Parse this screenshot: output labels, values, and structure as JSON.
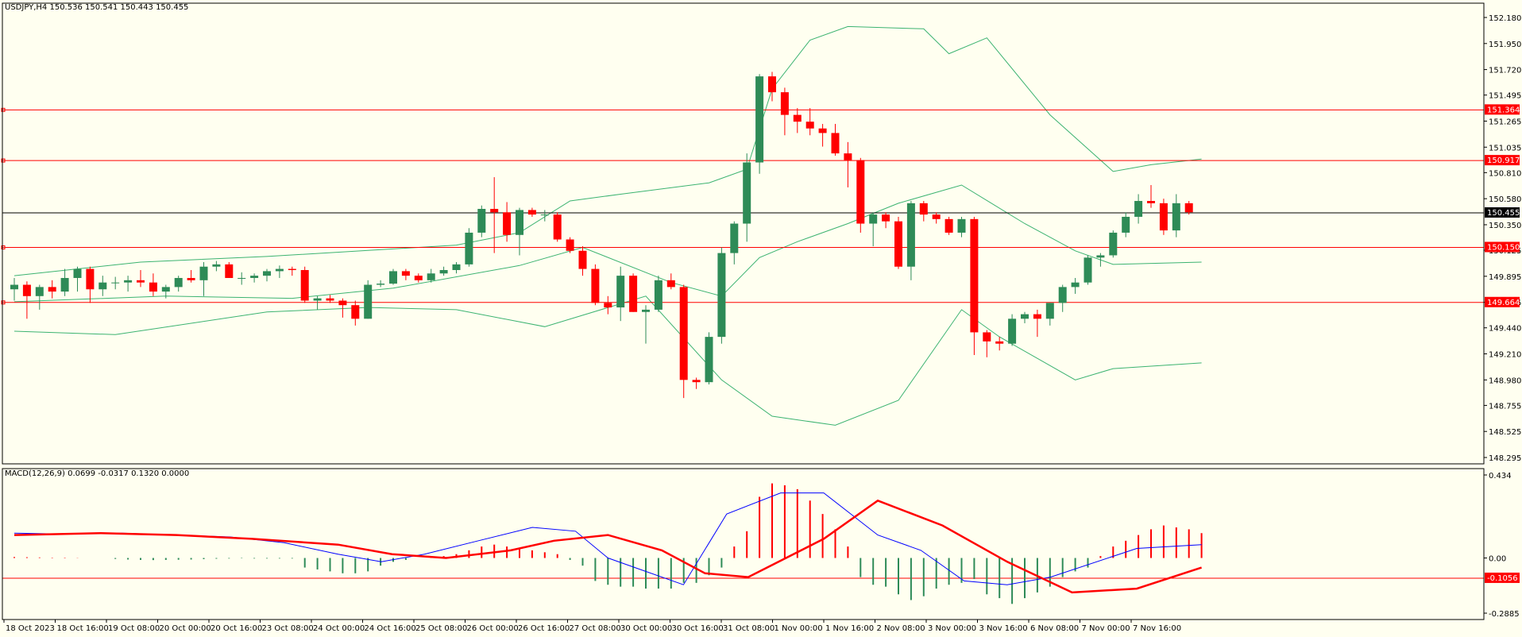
{
  "symbol_info": "USDJPY,H4  150.536 150.541 150.443 150.455",
  "macd_info": "MACD(12,26,9) 0.0699 -0.0317 0.1320 0.0000",
  "colors": {
    "background": "#fffff0",
    "bull": "#2e8b57",
    "bear": "#ff0000",
    "bands": "#3cb371",
    "macd_line": "#0000ff",
    "signal_line": "#ff0000",
    "price_line": "#000000",
    "level_line": "#ff0000"
  },
  "chart_data": [
    {
      "type": "candlestick",
      "title": "USDJPY,H4",
      "ylim": [
        148.295,
        152.18
      ],
      "y_ticks": [
        "152.180",
        "151.950",
        "151.720",
        "151.495",
        "151.265",
        "151.035",
        "150.810",
        "150.580",
        "150.350",
        "150.125",
        "149.895",
        "149.665",
        "149.440",
        "149.210",
        "148.980",
        "148.755",
        "148.525",
        "148.295"
      ],
      "current_price": "150.455",
      "levels": [
        {
          "value": 151.364,
          "label": "151.364"
        },
        {
          "value": 150.917,
          "label": "150.917"
        },
        {
          "value": 150.15,
          "label": "150.150"
        },
        {
          "value": 149.664,
          "label": "149.664"
        }
      ],
      "x_tick_labels": [
        "18 Oct 2023",
        "18 Oct 16:00",
        "19 Oct 08:00",
        "20 Oct 00:00",
        "20 Oct 16:00",
        "23 Oct 08:00",
        "24 Oct 00:00",
        "24 Oct 16:00",
        "25 Oct 08:00",
        "26 Oct 00:00",
        "26 Oct 16:00",
        "27 Oct 08:00",
        "30 Oct 00:00",
        "30 Oct 16:00",
        "31 Oct 08:00",
        "1 Nov 00:00",
        "1 Nov 16:00",
        "2 Nov 08:00",
        "3 Nov 00:00",
        "3 Nov 16:00",
        "6 Nov 08:00",
        "7 Nov 00:00",
        "7 Nov 16:00"
      ],
      "candles": [
        {
          "o": 149.78,
          "h": 149.88,
          "l": 149.68,
          "c": 149.82
        },
        {
          "o": 149.82,
          "h": 149.85,
          "l": 149.52,
          "c": 149.72
        },
        {
          "o": 149.72,
          "h": 149.82,
          "l": 149.6,
          "c": 149.8
        },
        {
          "o": 149.8,
          "h": 149.86,
          "l": 149.7,
          "c": 149.76
        },
        {
          "o": 149.76,
          "h": 149.96,
          "l": 149.72,
          "c": 149.88
        },
        {
          "o": 149.88,
          "h": 149.98,
          "l": 149.76,
          "c": 149.96
        },
        {
          "o": 149.96,
          "h": 149.98,
          "l": 149.66,
          "c": 149.78
        },
        {
          "o": 149.78,
          "h": 149.9,
          "l": 149.72,
          "c": 149.84
        },
        {
          "o": 149.84,
          "h": 149.89,
          "l": 149.78,
          "c": 149.84
        },
        {
          "o": 149.84,
          "h": 149.9,
          "l": 149.76,
          "c": 149.86
        },
        {
          "o": 149.86,
          "h": 149.95,
          "l": 149.8,
          "c": 149.84
        },
        {
          "o": 149.84,
          "h": 149.92,
          "l": 149.72,
          "c": 149.76
        },
        {
          "o": 149.76,
          "h": 149.82,
          "l": 149.7,
          "c": 149.8
        },
        {
          "o": 149.8,
          "h": 149.9,
          "l": 149.76,
          "c": 149.88
        },
        {
          "o": 149.88,
          "h": 149.95,
          "l": 149.84,
          "c": 149.86
        },
        {
          "o": 149.86,
          "h": 150.02,
          "l": 149.72,
          "c": 149.98
        },
        {
          "o": 149.98,
          "h": 150.03,
          "l": 149.94,
          "c": 150.0
        },
        {
          "o": 150.0,
          "h": 150.02,
          "l": 149.88,
          "c": 149.88
        },
        {
          "o": 149.88,
          "h": 149.93,
          "l": 149.82,
          "c": 149.88
        },
        {
          "o": 149.88,
          "h": 149.92,
          "l": 149.84,
          "c": 149.9
        },
        {
          "o": 149.9,
          "h": 149.96,
          "l": 149.85,
          "c": 149.94
        },
        {
          "o": 149.94,
          "h": 149.99,
          "l": 149.88,
          "c": 149.96
        },
        {
          "o": 149.96,
          "h": 149.98,
          "l": 149.9,
          "c": 149.95
        },
        {
          "o": 149.95,
          "h": 149.98,
          "l": 149.66,
          "c": 149.68
        },
        {
          "o": 149.68,
          "h": 149.72,
          "l": 149.6,
          "c": 149.7
        },
        {
          "o": 149.7,
          "h": 149.73,
          "l": 149.66,
          "c": 149.68
        },
        {
          "o": 149.68,
          "h": 149.7,
          "l": 149.53,
          "c": 149.64
        },
        {
          "o": 149.64,
          "h": 149.68,
          "l": 149.46,
          "c": 149.52
        },
        {
          "o": 149.52,
          "h": 149.86,
          "l": 149.52,
          "c": 149.82
        },
        {
          "o": 149.82,
          "h": 149.86,
          "l": 149.8,
          "c": 149.83
        },
        {
          "o": 149.83,
          "h": 149.96,
          "l": 149.82,
          "c": 149.94
        },
        {
          "o": 149.94,
          "h": 149.96,
          "l": 149.86,
          "c": 149.9
        },
        {
          "o": 149.9,
          "h": 149.92,
          "l": 149.84,
          "c": 149.86
        },
        {
          "o": 149.86,
          "h": 149.96,
          "l": 149.84,
          "c": 149.92
        },
        {
          "o": 149.92,
          "h": 149.98,
          "l": 149.9,
          "c": 149.95
        },
        {
          "o": 149.95,
          "h": 150.02,
          "l": 149.92,
          "c": 150.0
        },
        {
          "o": 150.0,
          "h": 150.32,
          "l": 149.98,
          "c": 150.28
        },
        {
          "o": 150.28,
          "h": 150.52,
          "l": 150.24,
          "c": 150.49
        },
        {
          "o": 150.49,
          "h": 150.77,
          "l": 150.1,
          "c": 150.46
        },
        {
          "o": 150.46,
          "h": 150.55,
          "l": 150.2,
          "c": 150.26
        },
        {
          "o": 150.26,
          "h": 150.5,
          "l": 150.08,
          "c": 150.48
        },
        {
          "o": 150.48,
          "h": 150.5,
          "l": 150.42,
          "c": 150.44
        },
        {
          "o": 150.44,
          "h": 150.48,
          "l": 150.38,
          "c": 150.44
        },
        {
          "o": 150.44,
          "h": 150.46,
          "l": 150.2,
          "c": 150.22
        },
        {
          "o": 150.22,
          "h": 150.24,
          "l": 150.1,
          "c": 150.12
        },
        {
          "o": 150.12,
          "h": 150.16,
          "l": 149.9,
          "c": 149.96
        },
        {
          "o": 149.96,
          "h": 150.0,
          "l": 149.64,
          "c": 149.66
        },
        {
          "o": 149.66,
          "h": 149.72,
          "l": 149.56,
          "c": 149.62
        },
        {
          "o": 149.62,
          "h": 149.98,
          "l": 149.5,
          "c": 149.9
        },
        {
          "o": 149.9,
          "h": 149.92,
          "l": 149.58,
          "c": 149.58
        },
        {
          "o": 149.58,
          "h": 149.64,
          "l": 149.3,
          "c": 149.6
        },
        {
          "o": 149.6,
          "h": 149.9,
          "l": 149.58,
          "c": 149.86
        },
        {
          "o": 149.86,
          "h": 149.92,
          "l": 149.78,
          "c": 149.8
        },
        {
          "o": 149.8,
          "h": 149.82,
          "l": 148.82,
          "c": 148.98
        },
        {
          "o": 148.98,
          "h": 149.0,
          "l": 148.9,
          "c": 148.96
        },
        {
          "o": 148.96,
          "h": 149.4,
          "l": 148.94,
          "c": 149.36
        },
        {
          "o": 149.36,
          "h": 150.15,
          "l": 149.3,
          "c": 150.1
        },
        {
          "o": 150.1,
          "h": 150.38,
          "l": 150.0,
          "c": 150.36
        },
        {
          "o": 150.36,
          "h": 150.98,
          "l": 150.2,
          "c": 150.9
        },
        {
          "o": 150.9,
          "h": 151.68,
          "l": 150.8,
          "c": 151.66
        },
        {
          "o": 151.66,
          "h": 151.7,
          "l": 151.44,
          "c": 151.52
        },
        {
          "o": 151.52,
          "h": 151.56,
          "l": 151.14,
          "c": 151.32
        },
        {
          "o": 151.32,
          "h": 151.38,
          "l": 151.16,
          "c": 151.26
        },
        {
          "o": 151.26,
          "h": 151.38,
          "l": 151.14,
          "c": 151.2
        },
        {
          "o": 151.2,
          "h": 151.24,
          "l": 151.04,
          "c": 151.16
        },
        {
          "o": 151.16,
          "h": 151.24,
          "l": 150.96,
          "c": 150.98
        },
        {
          "o": 150.98,
          "h": 151.08,
          "l": 150.68,
          "c": 150.92
        },
        {
          "o": 150.92,
          "h": 150.94,
          "l": 150.28,
          "c": 150.36
        },
        {
          "o": 150.36,
          "h": 150.46,
          "l": 150.16,
          "c": 150.44
        },
        {
          "o": 150.44,
          "h": 150.46,
          "l": 150.32,
          "c": 150.38
        },
        {
          "o": 150.38,
          "h": 150.42,
          "l": 149.96,
          "c": 149.98
        },
        {
          "o": 149.98,
          "h": 150.56,
          "l": 149.86,
          "c": 150.54
        },
        {
          "o": 150.54,
          "h": 150.56,
          "l": 150.38,
          "c": 150.44
        },
        {
          "o": 150.44,
          "h": 150.46,
          "l": 150.36,
          "c": 150.4
        },
        {
          "o": 150.4,
          "h": 150.42,
          "l": 150.26,
          "c": 150.28
        },
        {
          "o": 150.28,
          "h": 150.42,
          "l": 150.24,
          "c": 150.4
        },
        {
          "o": 150.4,
          "h": 150.42,
          "l": 149.2,
          "c": 149.4
        },
        {
          "o": 149.4,
          "h": 149.42,
          "l": 149.18,
          "c": 149.32
        },
        {
          "o": 149.32,
          "h": 149.36,
          "l": 149.24,
          "c": 149.3
        },
        {
          "o": 149.3,
          "h": 149.56,
          "l": 149.28,
          "c": 149.52
        },
        {
          "o": 149.52,
          "h": 149.58,
          "l": 149.48,
          "c": 149.56
        },
        {
          "o": 149.56,
          "h": 149.6,
          "l": 149.36,
          "c": 149.52
        },
        {
          "o": 149.52,
          "h": 149.66,
          "l": 149.46,
          "c": 149.66
        },
        {
          "o": 149.66,
          "h": 149.82,
          "l": 149.58,
          "c": 149.8
        },
        {
          "o": 149.8,
          "h": 149.88,
          "l": 149.74,
          "c": 149.84
        },
        {
          "o": 149.84,
          "h": 150.08,
          "l": 149.82,
          "c": 150.06
        },
        {
          "o": 150.06,
          "h": 150.1,
          "l": 149.98,
          "c": 150.08
        },
        {
          "o": 150.08,
          "h": 150.3,
          "l": 150.06,
          "c": 150.28
        },
        {
          "o": 150.28,
          "h": 150.46,
          "l": 150.24,
          "c": 150.42
        },
        {
          "o": 150.42,
          "h": 150.62,
          "l": 150.36,
          "c": 150.56
        },
        {
          "o": 150.56,
          "h": 150.7,
          "l": 150.5,
          "c": 150.54
        },
        {
          "o": 150.54,
          "h": 150.58,
          "l": 150.26,
          "c": 150.3
        },
        {
          "o": 150.3,
          "h": 150.62,
          "l": 150.24,
          "c": 150.54
        },
        {
          "o": 150.54,
          "h": 150.56,
          "l": 150.44,
          "c": 150.46
        }
      ],
      "bollinger": {
        "upper": [
          [
            0,
            149.9
          ],
          [
            10,
            150.02
          ],
          [
            20,
            150.07
          ],
          [
            35,
            150.17
          ],
          [
            40,
            150.28
          ],
          [
            44,
            150.56
          ],
          [
            48,
            150.62
          ],
          [
            55,
            150.72
          ],
          [
            58,
            150.84
          ],
          [
            60,
            151.55
          ],
          [
            63,
            151.98
          ],
          [
            66,
            152.1
          ],
          [
            72,
            152.08
          ],
          [
            74,
            151.86
          ],
          [
            77,
            152.0
          ],
          [
            82,
            151.32
          ],
          [
            87,
            150.82
          ],
          [
            90,
            150.88
          ],
          [
            94,
            150.93
          ]
        ],
        "middle": [
          [
            0,
            149.67
          ],
          [
            12,
            149.72
          ],
          [
            22,
            149.7
          ],
          [
            30,
            149.79
          ],
          [
            40,
            149.99
          ],
          [
            45,
            150.15
          ],
          [
            52,
            149.84
          ],
          [
            56,
            149.72
          ],
          [
            59,
            150.06
          ],
          [
            62,
            150.2
          ],
          [
            66,
            150.36
          ],
          [
            70,
            150.54
          ],
          [
            75,
            150.7
          ],
          [
            80,
            150.36
          ],
          [
            84,
            150.12
          ],
          [
            87,
            150.0
          ],
          [
            94,
            150.02
          ]
        ],
        "lower": [
          [
            0,
            149.41
          ],
          [
            8,
            149.38
          ],
          [
            20,
            149.58
          ],
          [
            28,
            149.62
          ],
          [
            35,
            149.6
          ],
          [
            42,
            149.45
          ],
          [
            50,
            149.72
          ],
          [
            56,
            148.98
          ],
          [
            60,
            148.66
          ],
          [
            65,
            148.58
          ],
          [
            70,
            148.8
          ],
          [
            75,
            149.6
          ],
          [
            78,
            149.36
          ],
          [
            84,
            148.98
          ],
          [
            87,
            149.08
          ],
          [
            94,
            149.13
          ]
        ]
      }
    },
    {
      "type": "macd",
      "title": "MACD(12,26,9)",
      "ylim": [
        -0.2885,
        0.434
      ],
      "y_ticks": [
        "0.434",
        "0.00",
        "-0.2885"
      ],
      "level": {
        "value": -0.1056,
        "label": "-0.1056"
      },
      "histogram": [
        0.005,
        0.004,
        0.003,
        0.002,
        0.002,
        0.001,
        0.0,
        0.0,
        -0.005,
        -0.008,
        -0.01,
        -0.011,
        -0.01,
        -0.009,
        -0.008,
        -0.006,
        -0.004,
        -0.003,
        -0.002,
        -0.003,
        -0.003,
        -0.003,
        -0.003,
        -0.05,
        -0.06,
        -0.07,
        -0.08,
        -0.08,
        -0.07,
        -0.04,
        -0.02,
        -0.01,
        0.0,
        0.005,
        0.01,
        0.02,
        0.04,
        0.06,
        0.07,
        0.06,
        0.05,
        0.04,
        0.03,
        0.02,
        -0.01,
        -0.04,
        -0.12,
        -0.14,
        -0.15,
        -0.15,
        -0.16,
        -0.16,
        -0.16,
        -0.13,
        -0.13,
        -0.09,
        -0.05,
        0.06,
        0.14,
        0.32,
        0.39,
        0.38,
        0.36,
        0.3,
        0.23,
        0.15,
        0.06,
        -0.1,
        -0.14,
        -0.15,
        -0.19,
        -0.22,
        -0.2,
        -0.16,
        -0.14,
        -0.13,
        -0.11,
        -0.19,
        -0.21,
        -0.24,
        -0.21,
        -0.18,
        -0.15,
        -0.1,
        -0.07,
        -0.05,
        0.01,
        0.06,
        0.09,
        0.12,
        0.15,
        0.17,
        0.16,
        0.15,
        0.13
      ],
      "macd_line": [
        [
          0,
          0.13
        ],
        [
          5,
          0.125
        ],
        [
          10,
          0.13
        ],
        [
          15,
          0.12
        ],
        [
          20,
          0.11
        ],
        [
          25,
          0.08
        ],
        [
          30,
          0.02
        ],
        [
          34,
          -0.02
        ],
        [
          38,
          0.02
        ],
        [
          43,
          0.09
        ],
        [
          48,
          0.16
        ],
        [
          52,
          0.14
        ],
        [
          55,
          0.0
        ],
        [
          58,
          -0.06
        ],
        [
          62,
          -0.14
        ],
        [
          66,
          0.23
        ],
        [
          71,
          0.34
        ],
        [
          75,
          0.34
        ],
        [
          80,
          0.12
        ],
        [
          84,
          0.04
        ],
        [
          88,
          -0.12
        ],
        [
          92,
          -0.14
        ],
        [
          96,
          -0.1
        ],
        [
          104,
          0.05
        ],
        [
          110,
          0.07
        ]
      ],
      "signal_line": [
        [
          0,
          0.12
        ],
        [
          8,
          0.13
        ],
        [
          15,
          0.12
        ],
        [
          22,
          0.1
        ],
        [
          30,
          0.07
        ],
        [
          35,
          0.02
        ],
        [
          40,
          0.0
        ],
        [
          46,
          0.04
        ],
        [
          50,
          0.09
        ],
        [
          55,
          0.12
        ],
        [
          60,
          0.04
        ],
        [
          64,
          -0.08
        ],
        [
          68,
          -0.1
        ],
        [
          75,
          0.1
        ],
        [
          80,
          0.3
        ],
        [
          86,
          0.17
        ],
        [
          92,
          -0.02
        ],
        [
          98,
          -0.18
        ],
        [
          104,
          -0.16
        ],
        [
          110,
          -0.05
        ]
      ]
    }
  ]
}
